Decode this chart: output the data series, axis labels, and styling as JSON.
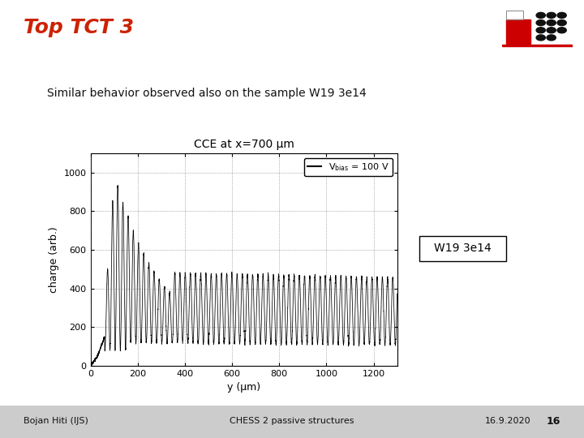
{
  "title": "Top TCT 3",
  "subtitle": "Similar behavior observed also on the sample W19 3e14",
  "plot_title": "CCE at x=700 μm",
  "xlabel": "y (μm)",
  "ylabel": "charge (arb.)",
  "legend_label": "V$_{bias}$ = 100 V",
  "annotation": "W19 3e14",
  "footer_left": "Bojan Hiti (IJS)",
  "footer_center": "CHESS 2 passive structures",
  "footer_right": "16.9.2020",
  "footer_page": "16",
  "xlim": [
    0,
    1300
  ],
  "ylim": [
    0,
    1100
  ],
  "xticks": [
    0,
    200,
    400,
    600,
    800,
    1000,
    1200
  ],
  "yticks": [
    0,
    200,
    400,
    600,
    800,
    1000
  ],
  "title_color": "#cc2200",
  "bg_color": "#ffffff",
  "line_color": "#000000",
  "footer_bg": "#cccccc"
}
